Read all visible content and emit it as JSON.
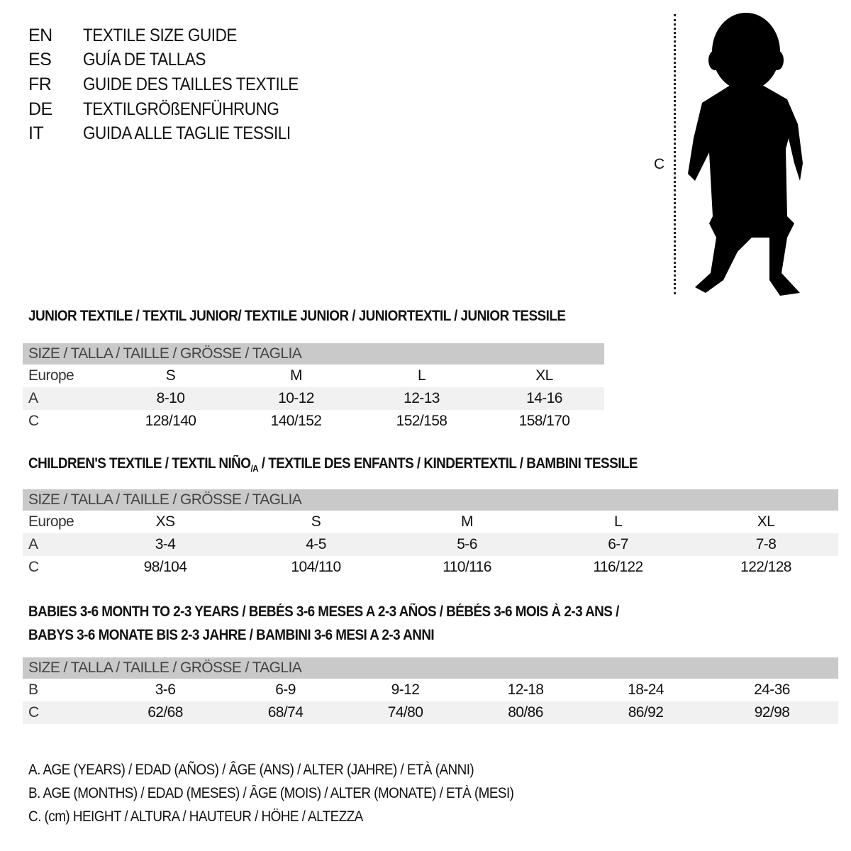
{
  "titles": [
    {
      "lang": "EN",
      "text": "TEXTILE SIZE GUIDE"
    },
    {
      "lang": "ES",
      "text": "GUÍA DE TALLAS"
    },
    {
      "lang": "FR",
      "text": "GUIDE DES TAILLES TEXTILE"
    },
    {
      "lang": "DE",
      "text": "TEXTILGRÖßENFÜHRUNG"
    },
    {
      "lang": "IT",
      "text": "GUIDA ALLE TAGLIE TESSILI"
    }
  ],
  "figure": {
    "measure_label": "C",
    "icon": "child-silhouette-icon"
  },
  "size_header": "SIZE / TALLA / TAILLE / GRÖSSE / TAGLIA",
  "junior": {
    "title": "JUNIOR TEXTILE / TEXTIL JUNIOR/ TEXTILE JUNIOR / JUNIORTEXTIL / JUNIOR TESSILE",
    "rows": [
      {
        "label": "Europe",
        "values": [
          "S",
          "M",
          "L",
          "XL"
        ]
      },
      {
        "label": "A",
        "values": [
          "8-10",
          "10-12",
          "12-13",
          "14-16"
        ]
      },
      {
        "label": "C",
        "values": [
          "128/140",
          "140/152",
          "152/158",
          "158/170"
        ]
      }
    ]
  },
  "children": {
    "title_a": "CHILDREN'S TEXTILE / TEXTIL NIÑO",
    "title_sub": "/A",
    "title_b": " / TEXTILE DES ENFANTS / KINDERTEXTIL / BAMBINI TESSILE",
    "rows": [
      {
        "label": "Europe",
        "values": [
          "XS",
          "S",
          "M",
          "L",
          "XL"
        ]
      },
      {
        "label": "A",
        "values": [
          "3-4",
          "4-5",
          "5-6",
          "6-7",
          "7-8"
        ]
      },
      {
        "label": "C",
        "values": [
          "98/104",
          "104/110",
          "110/116",
          "116/122",
          "122/128"
        ]
      }
    ]
  },
  "babies": {
    "title_line1": "BABIES 3-6 MONTH TO 2-3 YEARS / BEBÉS 3-6 MESES A 2-3 AÑOS / BÉBÉS 3-6 MOIS À 2-3 ANS /",
    "title_line2": "BABYS 3-6 MONATE BIS 2-3 JAHRE / BAMBINI 3-6 MESI A 2-3 ANNI",
    "rows": [
      {
        "label": "B",
        "values": [
          "3-6",
          "6-9",
          "9-12",
          "12-18",
          "18-24",
          "24-36"
        ]
      },
      {
        "label": "C",
        "values": [
          "62/68",
          "68/74",
          "74/80",
          "80/86",
          "86/92",
          "92/98"
        ]
      }
    ]
  },
  "legend": [
    "A. AGE (YEARS) / EDAD (AÑOS) / ÂGE (ANS) / ALTER (JAHRE) / ETÀ (ANNI)",
    "B. AGE (MONTHS) / EDAD (MESES) / ÂGE (MOIS) / ALTER (MONATE) / ETÀ (MESI)",
    "C. (cm) HEIGHT / ALTURA / HAUTEUR / HÖHE / ALTEZZA"
  ]
}
